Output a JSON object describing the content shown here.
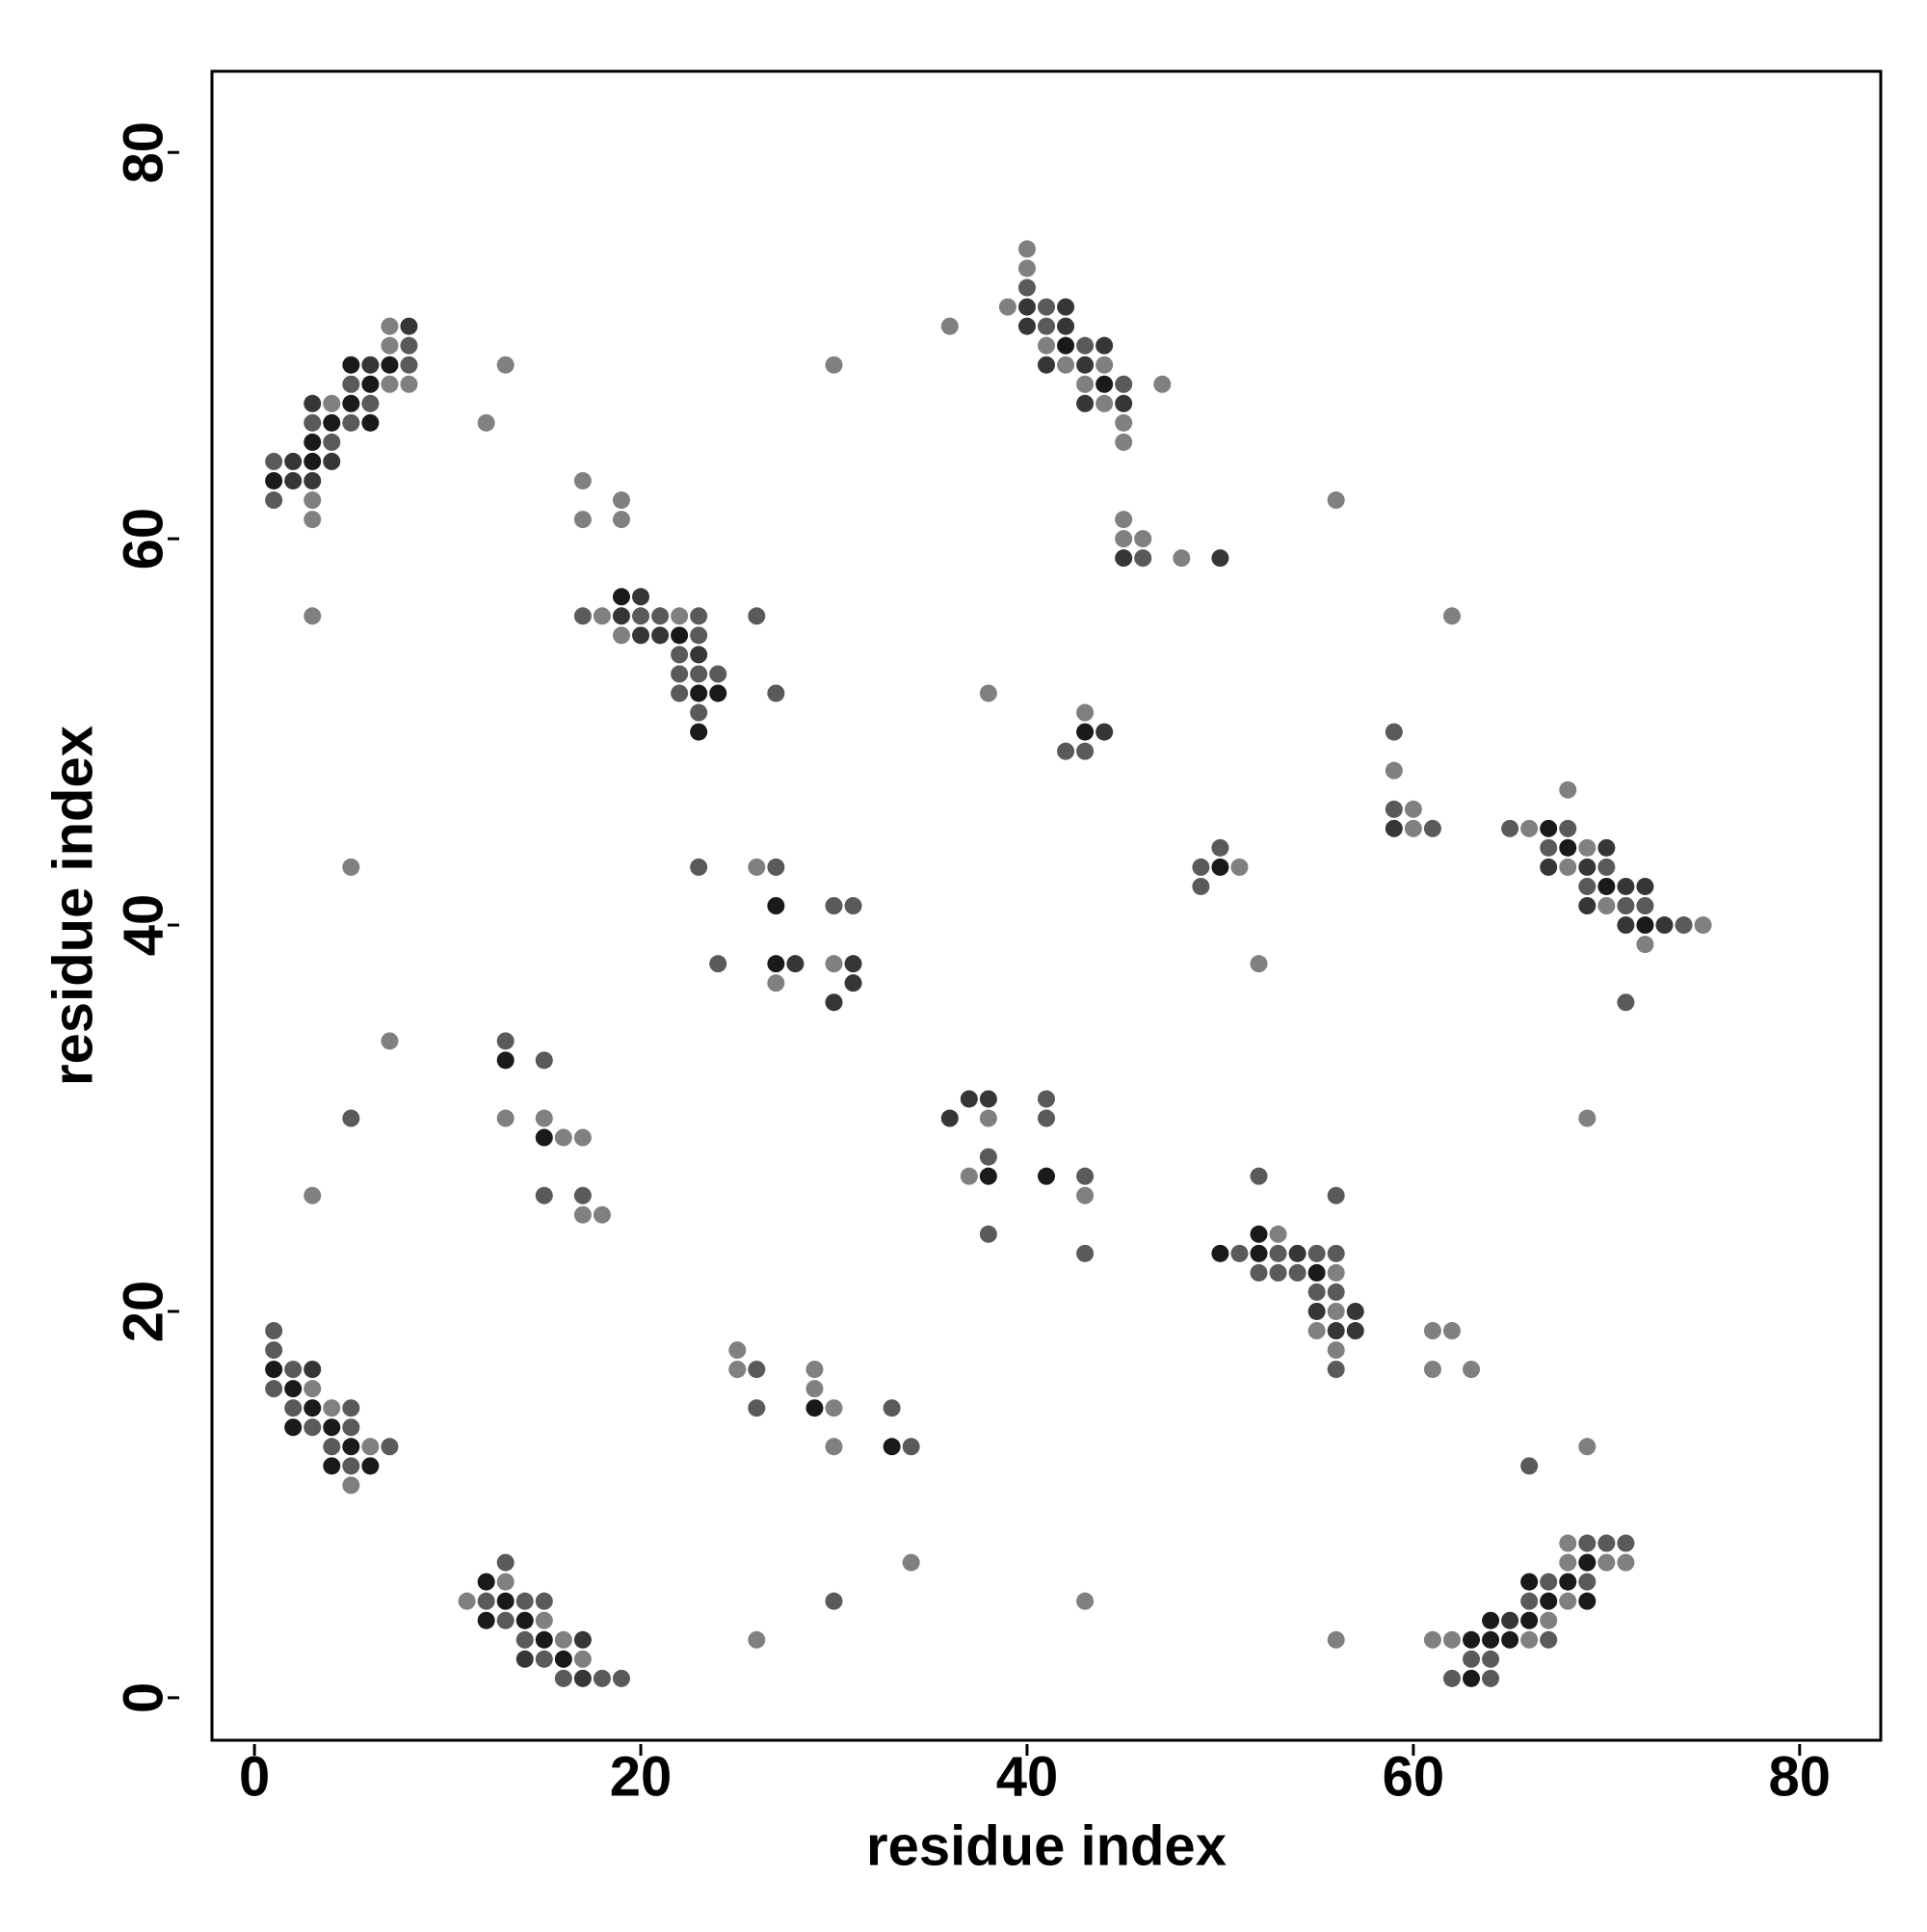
{
  "chart_data": {
    "type": "scatter",
    "xlabel": "residue index",
    "ylabel": "residue index",
    "xlim": [
      -2.2,
      84.2
    ],
    "ylim": [
      -2.2,
      84.2
    ],
    "xticks": [
      0,
      20,
      40,
      60,
      80
    ],
    "yticks": [
      0,
      20,
      40,
      60,
      80
    ],
    "series": [
      {
        "color": "#1a1a1a",
        "x": [
          1,
          3,
          3,
          4,
          5,
          5,
          6,
          6,
          7,
          19,
          22,
          23,
          23,
          24,
          27,
          27,
          13,
          15,
          1,
          2,
          2,
          3,
          4,
          4,
          5,
          6,
          12,
          12,
          13,
          14,
          15,
          16,
          29,
          33,
          42,
          44,
          43,
          50,
          67,
          68,
          70,
          72,
          38,
          41,
          50,
          52,
          52,
          55,
          63,
          63,
          64,
          64,
          65,
          66,
          66,
          67,
          68,
          69,
          69
        ],
        "y": [
          63,
          65,
          64,
          66,
          69,
          67,
          68,
          66,
          69,
          57,
          55,
          52,
          50,
          52,
          41,
          38,
          33,
          29,
          17,
          16,
          14,
          15,
          14,
          12,
          13,
          12,
          6,
          4,
          5,
          4,
          3,
          2,
          15,
          13,
          70,
          68,
          50,
          43,
          45,
          44,
          42,
          40,
          27,
          27,
          23,
          24,
          23,
          22,
          3,
          1,
          4,
          3,
          3,
          6,
          4,
          5,
          6,
          7,
          5
        ]
      },
      {
        "color": "#363636",
        "x": [
          2,
          2,
          3,
          3,
          4,
          6,
          8,
          19,
          20,
          20,
          21,
          23,
          28,
          31,
          31,
          30,
          3,
          14,
          17,
          17,
          40,
          40,
          41,
          42,
          42,
          43,
          43,
          44,
          45,
          45,
          50,
          44,
          59,
          67,
          69,
          69,
          70,
          71,
          71,
          72,
          73,
          36,
          37,
          38,
          54,
          55,
          56,
          57,
          57,
          65
        ],
        "y": [
          64,
          63,
          67,
          63,
          64,
          69,
          71,
          56,
          57,
          55,
          55,
          54,
          38,
          38,
          37,
          36,
          17,
          2,
          3,
          1,
          72,
          71,
          69,
          72,
          71,
          69,
          67,
          70,
          67,
          59,
          59,
          50,
          45,
          43,
          43,
          41,
          44,
          42,
          40,
          42,
          40,
          30,
          31,
          31,
          23,
          20,
          19,
          20,
          19,
          4
        ]
      },
      {
        "color": "#5a5a5a",
        "x": [
          1,
          1,
          3,
          4,
          5,
          5,
          6,
          8,
          8,
          5,
          17,
          20,
          21,
          22,
          22,
          22,
          23,
          23,
          23,
          23,
          24,
          26,
          27,
          23,
          27,
          24,
          30,
          31,
          13,
          15,
          15,
          17,
          1,
          1,
          1,
          2,
          2,
          3,
          4,
          5,
          5,
          5,
          7,
          12,
          13,
          13,
          14,
          14,
          15,
          15,
          16,
          18,
          19,
          26,
          26,
          33,
          34,
          30,
          40,
          41,
          41,
          43,
          45,
          46,
          42,
          43,
          49,
          49,
          50,
          59,
          59,
          61,
          65,
          67,
          68,
          69,
          70,
          71,
          72,
          74,
          71,
          38,
          38,
          41,
          41,
          43,
          43,
          52,
          56,
          51,
          52,
          53,
          53,
          54,
          55,
          55,
          56,
          56,
          56,
          66,
          62,
          63,
          64,
          64,
          66,
          67,
          67,
          69,
          69,
          70,
          71
        ],
        "y": [
          64,
          62,
          66,
          65,
          68,
          66,
          67,
          70,
          69,
          30,
          56,
          56,
          56,
          54,
          53,
          52,
          56,
          55,
          53,
          51,
          53,
          56,
          52,
          43,
          43,
          38,
          41,
          41,
          34,
          33,
          26,
          26,
          19,
          18,
          16,
          17,
          15,
          14,
          13,
          15,
          14,
          12,
          13,
          5,
          7,
          4,
          5,
          3,
          5,
          2,
          1,
          1,
          1,
          17,
          15,
          15,
          13,
          5,
          73,
          72,
          71,
          70,
          68,
          59,
          49,
          49,
          43,
          42,
          44,
          50,
          46,
          45,
          45,
          44,
          45,
          42,
          43,
          41,
          41,
          40,
          36,
          28,
          24,
          31,
          30,
          27,
          23,
          27,
          26,
          23,
          22,
          23,
          22,
          22,
          23,
          21,
          23,
          21,
          17,
          12,
          1,
          2,
          2,
          1,
          5,
          6,
          3,
          8,
          6,
          8,
          8
        ]
      },
      {
        "color": "#808080",
        "x": [
          3,
          3,
          4,
          7,
          7,
          7,
          8,
          3,
          12,
          13,
          5,
          7,
          3,
          17,
          17,
          19,
          19,
          18,
          19,
          22,
          26,
          27,
          30,
          13,
          15,
          16,
          17,
          17,
          18,
          3,
          4,
          5,
          6,
          11,
          13,
          15,
          16,
          17,
          25,
          25,
          29,
          29,
          30,
          30,
          34,
          26,
          36,
          39,
          40,
          40,
          41,
          42,
          43,
          44,
          44,
          45,
          45,
          47,
          30,
          45,
          45,
          46,
          48,
          56,
          62,
          38,
          43,
          51,
          52,
          59,
          60,
          60,
          66,
          68,
          68,
          69,
          70,
          72,
          75,
          69,
          37,
          38,
          43,
          43,
          53,
          55,
          56,
          56,
          56,
          61,
          62,
          61,
          63,
          69,
          56,
          61,
          62,
          66,
          67,
          68,
          68,
          68,
          70,
          71
        ],
        "y": [
          62,
          61,
          67,
          71,
          70,
          68,
          68,
          56,
          66,
          69,
          43,
          34,
          26,
          63,
          61,
          62,
          61,
          56,
          55,
          56,
          43,
          37,
          38,
          30,
          30,
          29,
          29,
          25,
          25,
          16,
          15,
          11,
          13,
          5,
          6,
          4,
          3,
          2,
          18,
          17,
          17,
          16,
          15,
          13,
          7,
          3,
          71,
          72,
          75,
          74,
          70,
          69,
          68,
          69,
          67,
          66,
          65,
          68,
          69,
          61,
          60,
          60,
          59,
          62,
          56,
          52,
          51,
          43,
          38,
          48,
          46,
          45,
          45,
          47,
          43,
          44,
          41,
          39,
          40,
          30,
          27,
          30,
          26,
          5,
          24,
          19,
          22,
          20,
          18,
          19,
          19,
          17,
          17,
          13,
          3,
          3,
          3,
          3,
          4,
          8,
          7,
          5,
          7,
          7
        ]
      }
    ]
  }
}
